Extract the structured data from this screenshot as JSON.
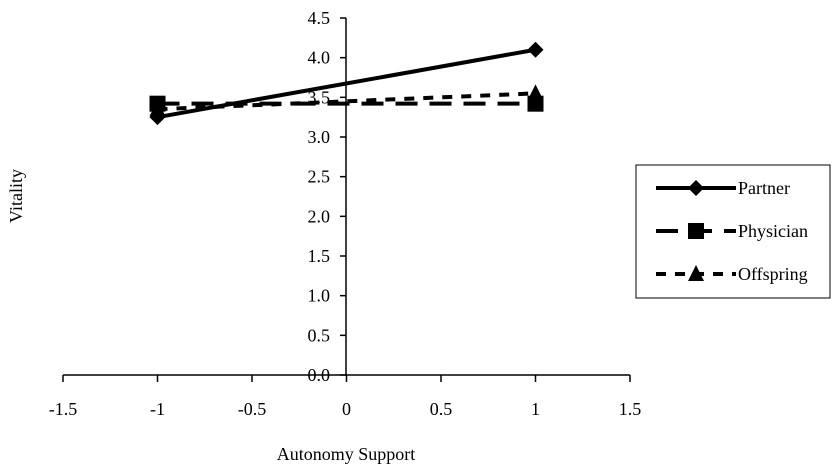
{
  "chart_data": {
    "type": "line",
    "title": "",
    "xlabel": "Autonomy Support",
    "ylabel": "Vitality",
    "xlim": [
      -1.5,
      1.5
    ],
    "ylim": [
      0.0,
      4.5
    ],
    "x_ticks": [
      "-1.5",
      "-1",
      "-0.5",
      "0",
      "0.5",
      "1",
      "1.5"
    ],
    "y_ticks": [
      "0.0",
      "0.5",
      "1.0",
      "1.5",
      "2.0",
      "2.5",
      "3.0",
      "3.5",
      "4.0",
      "4.5"
    ],
    "x": [
      -1,
      1
    ],
    "series": [
      {
        "name": "Partner",
        "values": [
          3.25,
          4.1
        ],
        "marker": "diamond",
        "line": "solid"
      },
      {
        "name": "Physician",
        "values": [
          3.42,
          3.42
        ],
        "marker": "square",
        "line": "long-dash"
      },
      {
        "name": "Offspring",
        "values": [
          3.35,
          3.55
        ],
        "marker": "triangle",
        "line": "short-dash"
      }
    ],
    "grid": false,
    "legend_position": "right"
  }
}
